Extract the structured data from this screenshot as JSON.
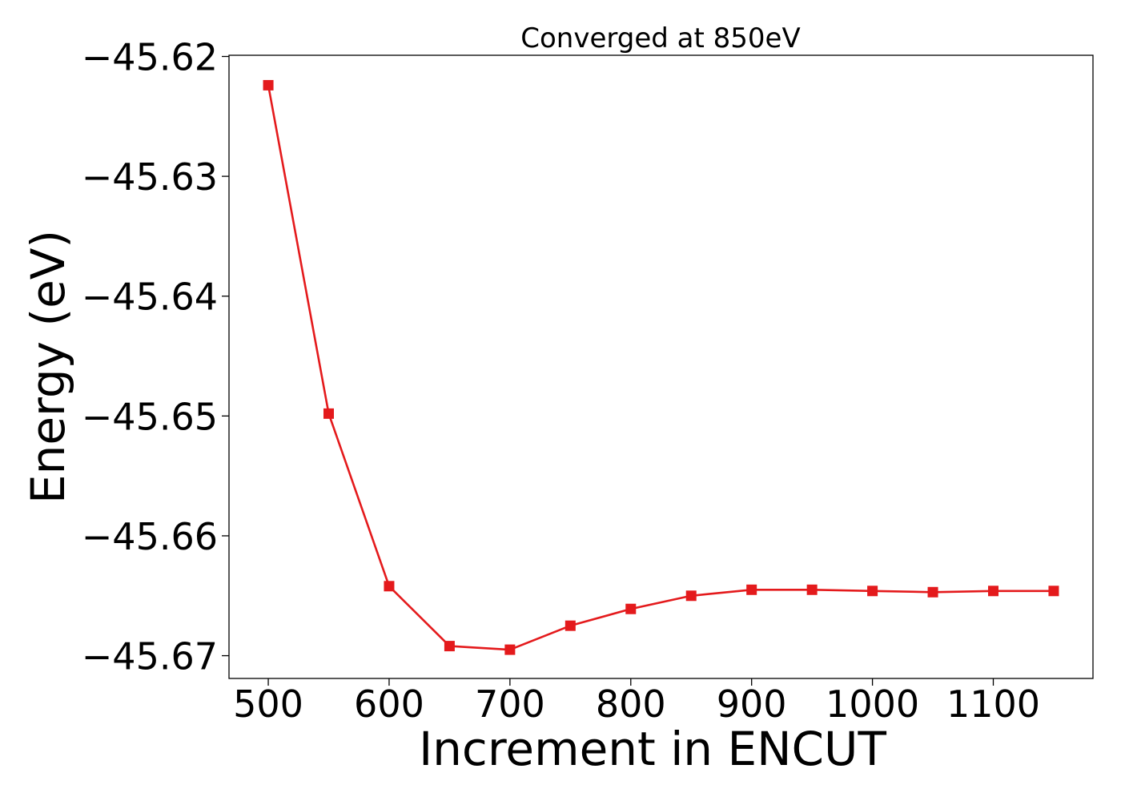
{
  "chart_data": {
    "type": "line",
    "title": "Converged at 850eV",
    "xlabel": "Increment in ENCUT",
    "ylabel": "Energy (eV)",
    "x": [
      500,
      550,
      600,
      650,
      700,
      750,
      800,
      850,
      900,
      950,
      1000,
      1050,
      1100,
      1150
    ],
    "series": [
      {
        "values": [
          -45.6224,
          -45.6498,
          -45.6642,
          -45.6692,
          -45.6695,
          -45.6675,
          -45.6661,
          -45.665,
          -45.6645,
          -45.6645,
          -45.6646,
          -45.6647,
          -45.6646,
          -45.6646
        ],
        "color": "#e41a1c",
        "marker": "square"
      }
    ],
    "xlim": [
      467.5,
      1182.5
    ],
    "ylim": [
      -45.6719,
      -45.6199
    ],
    "xticks": [
      500,
      600,
      700,
      800,
      900,
      1000,
      1100
    ],
    "xtick_labels": [
      "500",
      "600",
      "700",
      "800",
      "900",
      "1000",
      "1100"
    ],
    "yticks": [
      -45.62,
      -45.63,
      -45.64,
      -45.65,
      -45.66,
      -45.67
    ],
    "ytick_labels": [
      "−45.62",
      "−45.63",
      "−45.64",
      "−45.65",
      "−45.66",
      "−45.67"
    ],
    "grid": false,
    "legend": false
  }
}
